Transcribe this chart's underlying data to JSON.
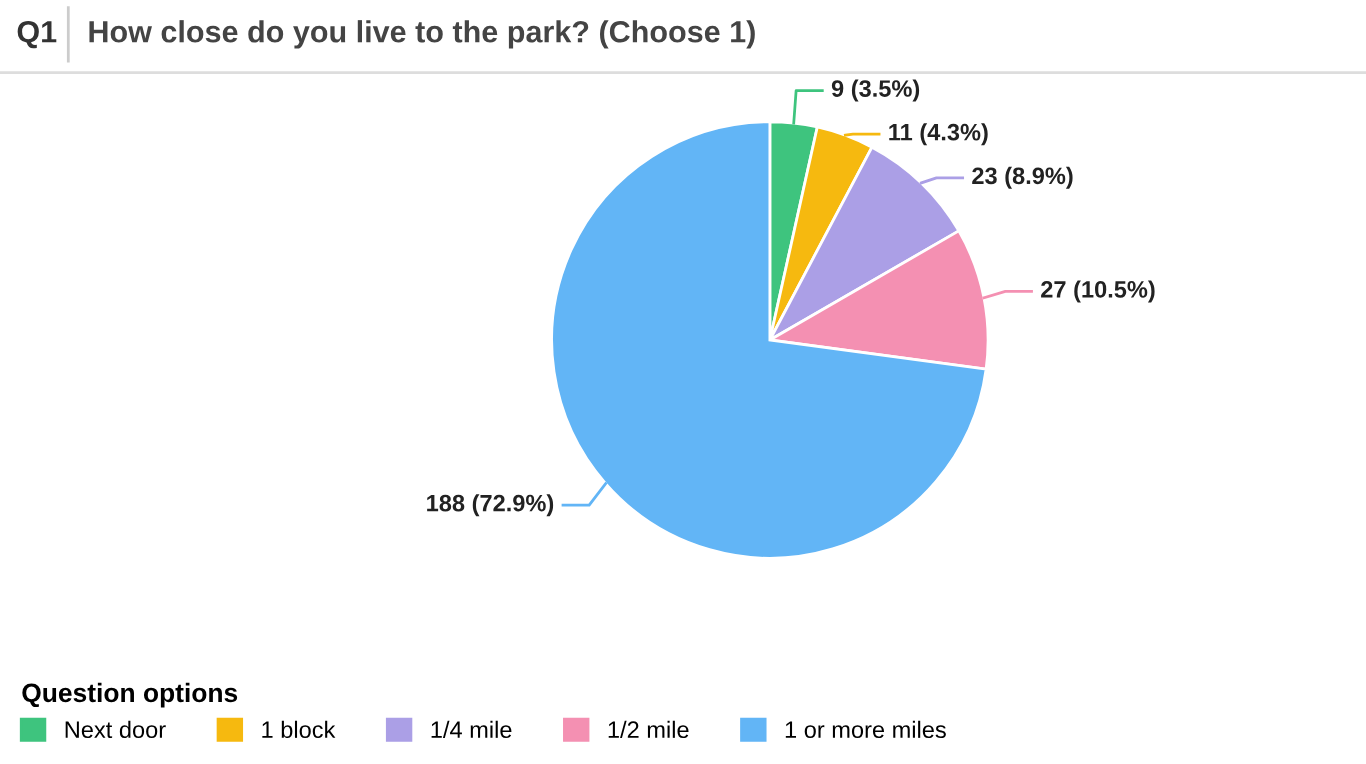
{
  "chart_data": {
    "type": "pie",
    "title": "How close do you live to the park? (Choose 1)",
    "annotations": [
      "Q1"
    ],
    "categories": [
      "Next door",
      "1 block",
      "1/4 mile",
      "1/2 mile",
      "1 or more miles"
    ],
    "values": [
      9,
      11,
      23,
      27,
      188
    ],
    "colors": [
      "#3ec47e",
      "#f6b90f",
      "#ab9fe6",
      "#f490b2",
      "#62b5f6"
    ],
    "value_labels": [
      "9 (3.5%)",
      "11 (4.3%)",
      "23 (8.9%)",
      "27 (10.5%)",
      "188 (72.9%)"
    ],
    "legend_title": "Question options",
    "legend": "bottom left"
  }
}
